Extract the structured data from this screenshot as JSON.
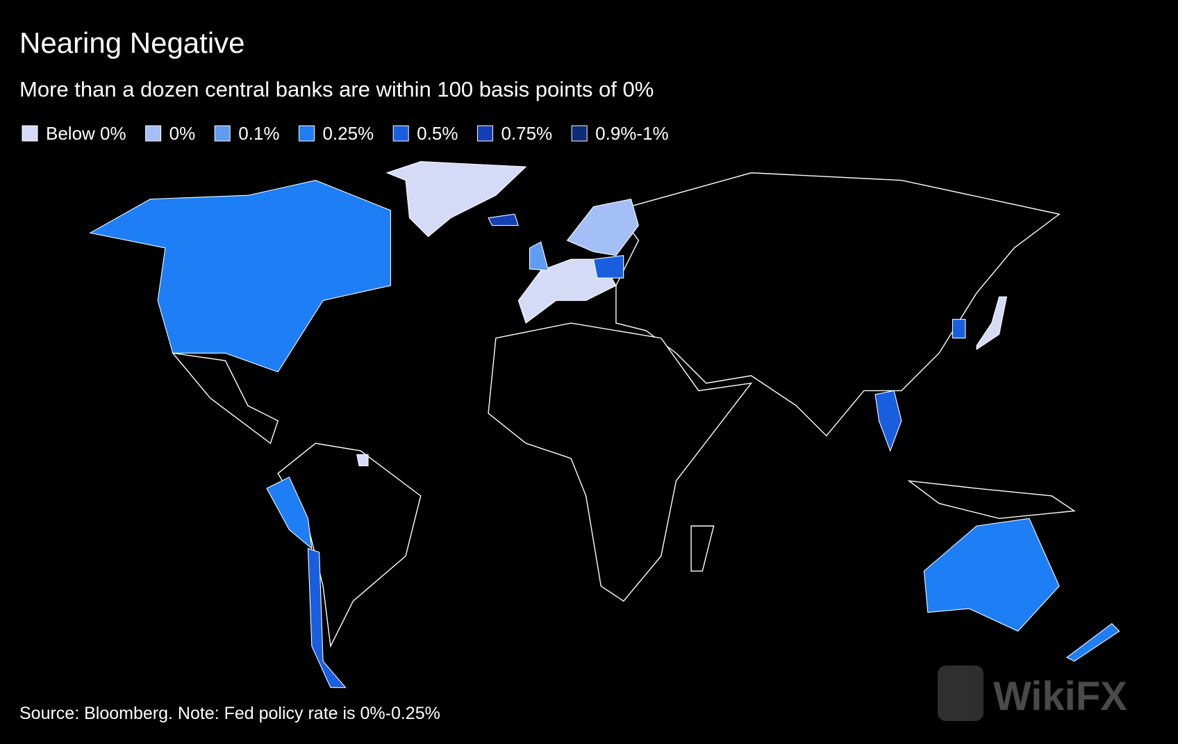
{
  "header": {
    "title": "Nearing Negative",
    "subtitle": "More than a dozen central banks are within 100 basis points of 0%"
  },
  "legend": [
    {
      "label": "Below 0%",
      "color": "#d5dbf6"
    },
    {
      "label": "0%",
      "color": "#a3bff5"
    },
    {
      "label": "0.1%",
      "color": "#5f9cf2"
    },
    {
      "label": "0.25%",
      "color": "#1e7ef5"
    },
    {
      "label": "0.5%",
      "color": "#1a5ee0"
    },
    {
      "label": "0.75%",
      "color": "#1440b4"
    },
    {
      "label": "0.9%-1%",
      "color": "#0c2a78"
    }
  ],
  "source": "Source: Bloomberg. Note: Fed policy rate is 0%-0.25%",
  "watermark": "WikiFX"
}
